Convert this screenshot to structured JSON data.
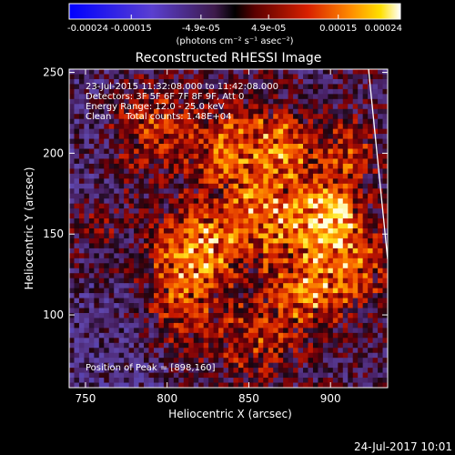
{
  "chart_data": {
    "type": "heatmap",
    "title": "Reconstructed RHESSI Image",
    "xlabel": "Heliocentric X (arcsec)",
    "ylabel": "Heliocentric Y (arcsec)",
    "xlim": [
      740,
      935
    ],
    "ylim": [
      55,
      252
    ],
    "xticks": [
      "750",
      "800",
      "850",
      "900"
    ],
    "xtick_values": [
      750,
      800,
      850,
      900
    ],
    "yticks": [
      "100",
      "150",
      "200",
      "250"
    ],
    "ytick_values": [
      100,
      150,
      200,
      250
    ],
    "colorbar": {
      "range": [
        -0.00024,
        0.00024
      ],
      "ticks": [
        "-0.00024",
        "-0.00015",
        "-4.9e-05",
        "4.9e-05",
        "0.00015",
        "0.00024"
      ],
      "tick_values": [
        -0.00024,
        -0.00015,
        -4.9e-05,
        4.9e-05,
        0.00015,
        0.00024
      ],
      "label": "(photons cm⁻² s⁻¹ asec⁻²)"
    },
    "annotations": [
      "23-Jul-2015 11:32:08.000 to 11:42:08.000",
      "Detectors: 3F 5F 6F 7F 8F 9F, Att 0",
      "Energy Range: 12.0 - 25.0 keV",
      "Clean     Total counts: 1.48E+04"
    ],
    "peak_label": "Position of Peak = [898,160]",
    "peak": [
      898,
      160
    ],
    "total_counts": "1.48E+04",
    "energy_range_kev": [
      12.0,
      25.0
    ],
    "detectors": [
      "3F",
      "5F",
      "6F",
      "7F",
      "8F",
      "9F"
    ],
    "attenuator": 0,
    "clean": true,
    "limb_visible": true
  },
  "footer": {
    "timestamp": "24-Jul-2017 10:01"
  },
  "colors": {
    "background": "#000000",
    "foreground": "#ffffff",
    "negative": "#0000ff",
    "positive_high": "#ffffff"
  }
}
